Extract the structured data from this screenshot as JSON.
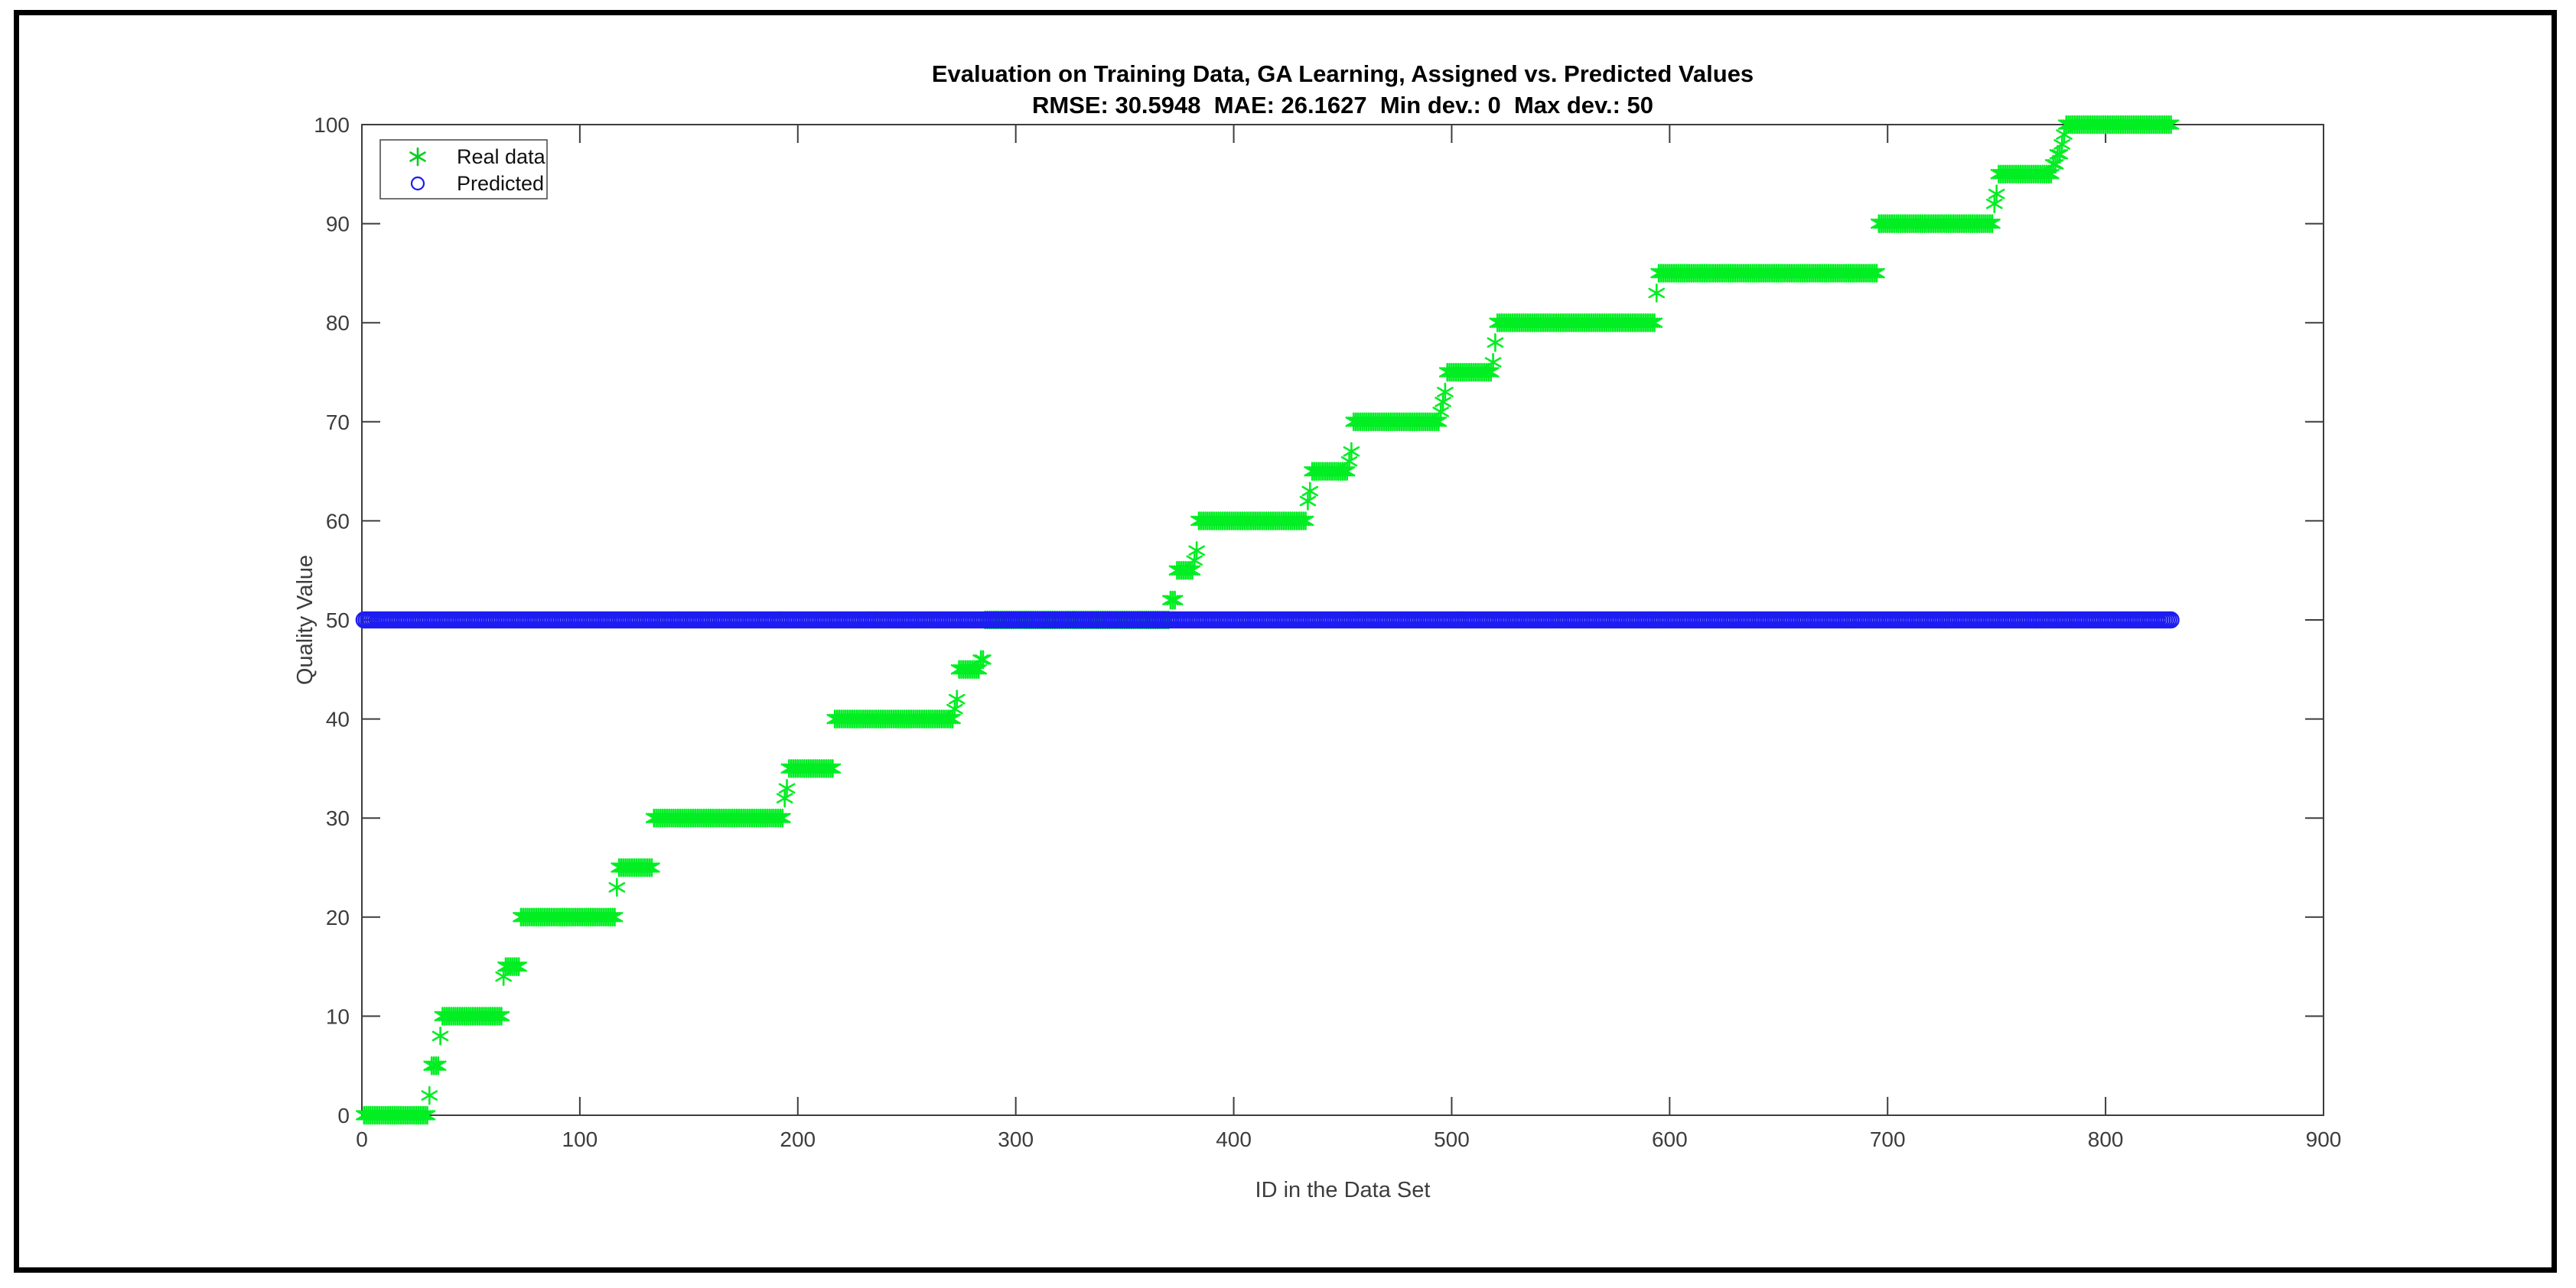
{
  "figure": {
    "background": "#ffffff",
    "frame_color": "#000000",
    "axis_color": "#3d3d3d"
  },
  "chart_data": {
    "type": "scatter",
    "title": "Evaluation on Training Data, GA Learning, Assigned vs. Predicted Values",
    "subtitle": "RMSE: 30.5948  MAE: 26.1627  Min dev.: 0  Max dev.: 50",
    "xlabel": "ID in the Data Set",
    "ylabel": "Quality Value",
    "xlim": [
      0,
      900
    ],
    "ylim": [
      0,
      100
    ],
    "x_ticks": [
      0,
      100,
      200,
      300,
      400,
      500,
      600,
      700,
      800,
      900
    ],
    "y_ticks": [
      0,
      10,
      20,
      30,
      40,
      50,
      60,
      70,
      80,
      90,
      100
    ],
    "grid": false,
    "box": true,
    "legend": {
      "position": "top-left",
      "entries": [
        {
          "label": "Real data",
          "marker": "asterisk",
          "color": "#00ee22"
        },
        {
          "label": "Predicted",
          "marker": "circle",
          "color": "#1d1df2"
        }
      ]
    },
    "runs_format": "[quality_value, first_id, last_id] — one marker per integer ID",
    "series": [
      {
        "name": "Real data",
        "marker": "asterisk",
        "color": "#00ee22",
        "runs": [
          [
            0,
            1,
            30
          ],
          [
            2,
            31,
            31
          ],
          [
            5,
            32,
            35
          ],
          [
            8,
            36,
            36
          ],
          [
            10,
            37,
            64
          ],
          [
            14,
            65,
            65
          ],
          [
            15,
            66,
            72
          ],
          [
            20,
            73,
            116
          ],
          [
            23,
            117,
            117
          ],
          [
            25,
            118,
            133
          ],
          [
            30,
            134,
            193
          ],
          [
            32,
            194,
            194
          ],
          [
            33,
            195,
            195
          ],
          [
            35,
            196,
            216
          ],
          [
            40,
            217,
            271
          ],
          [
            41,
            272,
            272
          ],
          [
            42,
            273,
            273
          ],
          [
            45,
            274,
            283
          ],
          [
            46,
            284,
            285
          ],
          [
            50,
            286,
            370
          ],
          [
            52,
            371,
            373
          ],
          [
            55,
            374,
            381
          ],
          [
            56,
            382,
            382
          ],
          [
            57,
            383,
            383
          ],
          [
            60,
            384,
            433
          ],
          [
            62,
            434,
            434
          ],
          [
            63,
            435,
            435
          ],
          [
            65,
            436,
            452
          ],
          [
            66,
            453,
            453
          ],
          [
            67,
            454,
            454
          ],
          [
            70,
            455,
            494
          ],
          [
            71,
            495,
            495
          ],
          [
            72,
            496,
            496
          ],
          [
            73,
            497,
            497
          ],
          [
            75,
            498,
            518
          ],
          [
            76,
            519,
            519
          ],
          [
            78,
            520,
            520
          ],
          [
            80,
            521,
            593
          ],
          [
            83,
            594,
            594
          ],
          [
            85,
            595,
            695
          ],
          [
            90,
            696,
            748
          ],
          [
            92,
            749,
            749
          ],
          [
            93,
            750,
            750
          ],
          [
            95,
            751,
            775
          ],
          [
            96,
            776,
            777
          ],
          [
            97,
            778,
            779
          ],
          [
            98,
            780,
            780
          ],
          [
            99,
            781,
            781
          ],
          [
            100,
            782,
            830
          ]
        ]
      },
      {
        "name": "Predicted",
        "marker": "circle",
        "color": "#1d1df2",
        "runs": [
          [
            50,
            1,
            830
          ]
        ]
      }
    ]
  }
}
